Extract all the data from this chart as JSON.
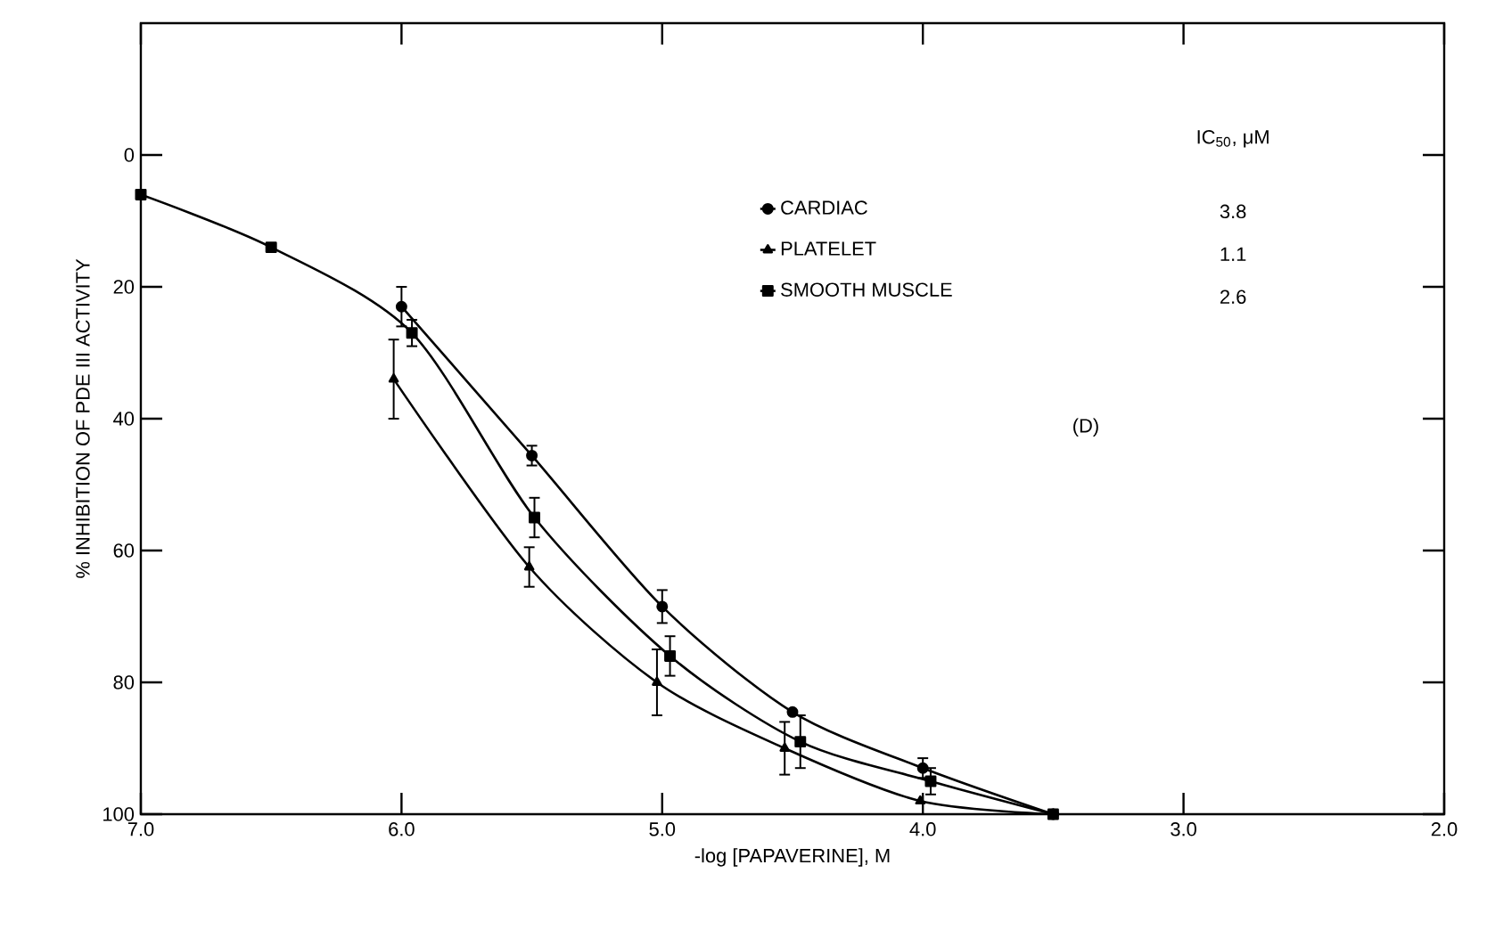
{
  "chart_data": {
    "type": "line",
    "xlabel": "-log [PAPAVERINE], M",
    "ylabel": "% INHIBITION OF PDE III ACTIVITY",
    "series": [
      {
        "name": "CARDIAC",
        "color": "#000000",
        "marker": "circle",
        "x": [
          6.0,
          5.5,
          5.0,
          4.5,
          4.0,
          3.5
        ],
        "values": [
          23,
          45.6,
          68.5,
          84.5,
          93,
          100
        ],
        "errors": [
          3,
          1.5,
          2.5,
          null,
          1.5,
          null
        ]
      },
      {
        "name": "PLATELET",
        "color": "#000000",
        "marker": "triangle",
        "x": [
          6.03,
          5.51,
          5.02,
          4.53,
          4.01,
          3.5
        ],
        "values": [
          34,
          62.5,
          80,
          90,
          98,
          100
        ],
        "errors": [
          6,
          3,
          5,
          4,
          null,
          null
        ]
      },
      {
        "name": "SMOOTH MUSCLE",
        "color": "#000000",
        "marker": "square",
        "x": [
          7.0,
          6.5,
          5.96,
          5.49,
          4.97,
          4.47,
          3.97,
          3.5
        ],
        "values": [
          6,
          14,
          27,
          55,
          76,
          89,
          95,
          100
        ],
        "errors": [
          null,
          null,
          2,
          3,
          3,
          4,
          2,
          null
        ]
      }
    ],
    "xlim": [
      7.0,
      2.0
    ],
    "ylim": [
      100,
      -20
    ],
    "xticks": [
      {
        "value": 7.0,
        "label": "7.0"
      },
      {
        "value": 6.0,
        "label": "6.0"
      },
      {
        "value": 5.0,
        "label": "5.0"
      },
      {
        "value": 4.0,
        "label": "4.0"
      },
      {
        "value": 3.0,
        "label": "3.0"
      },
      {
        "value": 2.0,
        "label": "2.0"
      }
    ],
    "yticks": [
      0,
      20,
      40,
      60,
      80,
      100
    ],
    "legend": "top right",
    "grid": false,
    "line_style": "solid",
    "annotations": [
      "IC$_{50}$, μM",
      "3.8",
      "1.1",
      "2.6",
      "(D)"
    ]
  }
}
